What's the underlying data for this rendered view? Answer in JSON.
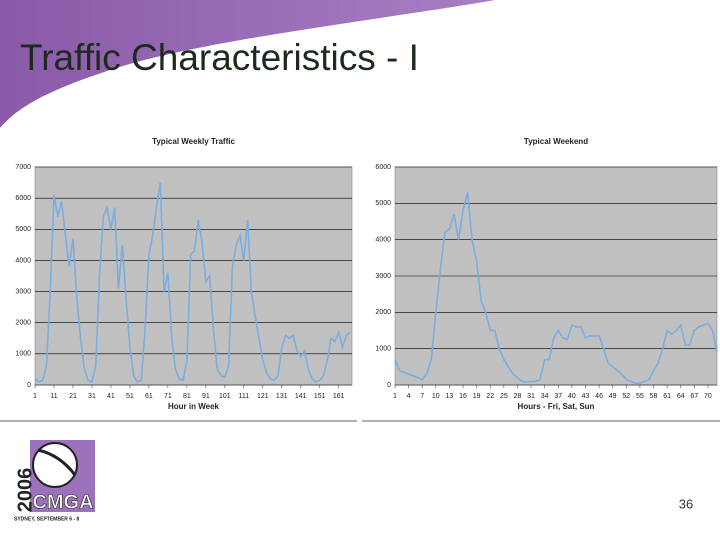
{
  "slide": {
    "title": "Traffic Characteristics - I",
    "page_number": "36",
    "logo": {
      "year": "2006",
      "name": "CMGA",
      "tagline": "SYDNEY, SEPTEMBER 6 - 8"
    }
  },
  "chart_data": [
    {
      "type": "line",
      "title": "Typical Weekly Traffic",
      "xlabel": "Hour in Week",
      "color": "#7aaee0",
      "grid": true,
      "xlim": [
        1,
        168
      ],
      "xticks": [
        1,
        11,
        21,
        31,
        41,
        51,
        61,
        71,
        81,
        91,
        101,
        111,
        121,
        131,
        141,
        151,
        161
      ],
      "ylim": [
        0,
        7000
      ],
      "yticks": [
        0,
        1000,
        2000,
        3000,
        4000,
        5000,
        6000,
        7000
      ],
      "x": [
        1,
        3,
        5,
        7,
        9,
        11,
        13,
        15,
        17,
        19,
        21,
        23,
        25,
        27,
        29,
        31,
        33,
        35,
        37,
        39,
        41,
        43,
        45,
        47,
        49,
        51,
        53,
        55,
        57,
        59,
        61,
        63,
        65,
        67,
        69,
        71,
        73,
        75,
        77,
        79,
        81,
        83,
        85,
        87,
        89,
        91,
        93,
        95,
        97,
        99,
        101,
        103,
        105,
        107,
        109,
        111,
        113,
        115,
        117,
        119,
        121,
        123,
        125,
        127,
        129,
        131,
        133,
        135,
        137,
        139,
        141,
        143,
        145,
        147,
        149,
        151,
        153,
        155,
        157,
        159,
        161,
        163,
        165,
        167
      ],
      "values": [
        200,
        100,
        150,
        600,
        3000,
        6100,
        5400,
        5900,
        4800,
        3800,
        4700,
        2800,
        1500,
        500,
        150,
        100,
        600,
        3500,
        5400,
        5700,
        5000,
        5700,
        3100,
        4500,
        2800,
        1200,
        300,
        100,
        150,
        1800,
        4200,
        4800,
        5700,
        6500,
        3000,
        3600,
        1500,
        500,
        200,
        150,
        800,
        4200,
        4300,
        5300,
        4600,
        3300,
        3500,
        1800,
        500,
        300,
        250,
        600,
        3800,
        4500,
        4800,
        4000,
        5300,
        3000,
        2200,
        1500,
        800,
        400,
        200,
        150,
        300,
        1200,
        1600,
        1500,
        1600,
        1100,
        900,
        1100,
        500,
        200,
        100,
        150,
        300,
        800,
        1500,
        1400,
        1700,
        1200,
        1600,
        1700
      ]
    },
    {
      "type": "line",
      "title": "Typical Weekend",
      "xlabel": "Hours - Fri, Sat, Sun",
      "color": "#7aaee0",
      "grid": true,
      "xlim": [
        1,
        72
      ],
      "xticks": [
        1,
        4,
        7,
        10,
        13,
        16,
        19,
        22,
        25,
        28,
        31,
        34,
        37,
        40,
        43,
        46,
        49,
        52,
        55,
        58,
        61,
        64,
        67,
        70
      ],
      "ylim": [
        0,
        6000
      ],
      "yticks": [
        0,
        1000,
        2000,
        3000,
        4000,
        5000,
        6000
      ],
      "x": [
        1,
        2,
        3,
        4,
        5,
        6,
        7,
        8,
        9,
        10,
        11,
        12,
        13,
        14,
        15,
        16,
        17,
        18,
        19,
        20,
        21,
        22,
        23,
        24,
        25,
        26,
        27,
        28,
        29,
        30,
        31,
        32,
        33,
        34,
        35,
        36,
        37,
        38,
        39,
        40,
        41,
        42,
        43,
        44,
        45,
        46,
        47,
        48,
        49,
        50,
        51,
        52,
        53,
        54,
        55,
        56,
        57,
        58,
        59,
        60,
        61,
        62,
        63,
        64,
        65,
        66,
        67,
        68,
        69,
        70,
        71,
        72
      ],
      "values": [
        700,
        400,
        350,
        300,
        250,
        200,
        150,
        300,
        700,
        2000,
        3200,
        4200,
        4300,
        4700,
        4000,
        4800,
        5300,
        4000,
        3400,
        2300,
        2000,
        1500,
        1500,
        1000,
        700,
        500,
        300,
        200,
        100,
        80,
        100,
        100,
        150,
        700,
        700,
        1300,
        1500,
        1300,
        1250,
        1650,
        1600,
        1600,
        1300,
        1350,
        1350,
        1350,
        1000,
        600,
        500,
        400,
        300,
        150,
        100,
        50,
        50,
        100,
        150,
        400,
        600,
        1000,
        1500,
        1400,
        1500,
        1650,
        1100,
        1100,
        1500,
        1600,
        1650,
        1700,
        1500,
        900
      ]
    }
  ]
}
